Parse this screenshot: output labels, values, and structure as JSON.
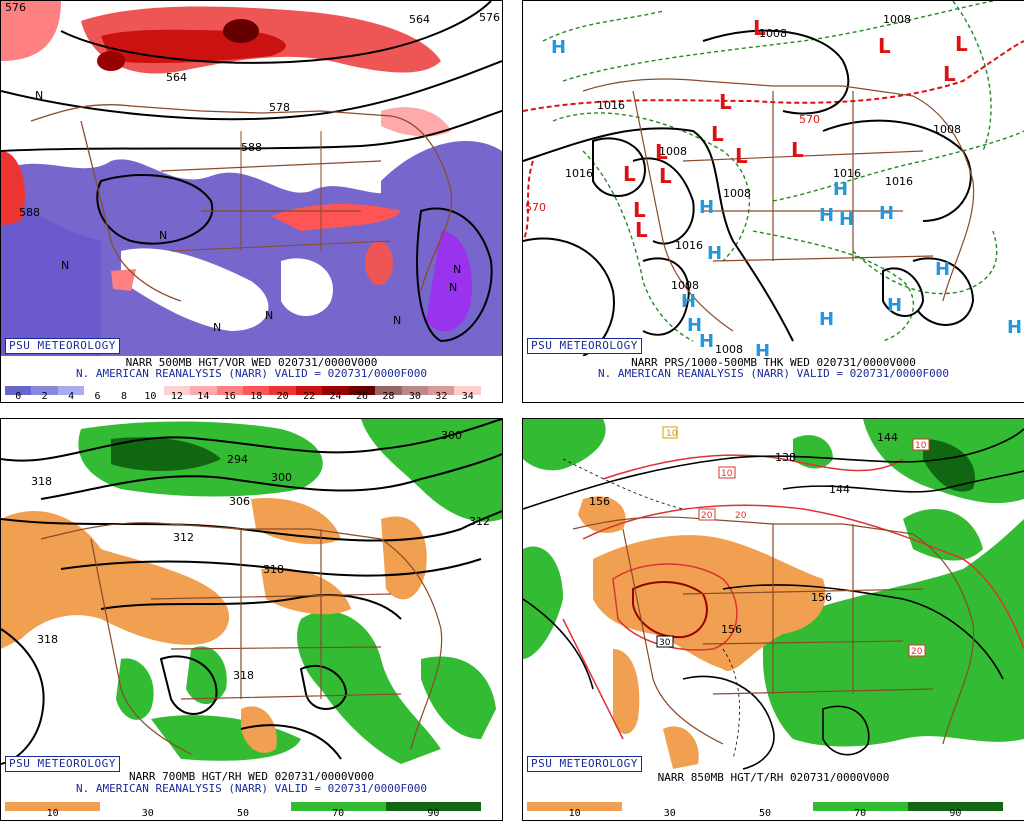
{
  "panels": [
    {
      "logo": "PSU METEOROLOGY",
      "line1": "NARR 500MB HGT/VOR WED 020731/0000V000",
      "line2": "N. AMERICAN REANALYSIS (NARR) VALID = 020731/0000F000",
      "colorbar": [
        "#6666cc",
        "#8888dd",
        "#aaaaee",
        "#ffffff",
        "#ffffff",
        "#ffffff",
        "#ffd0d0",
        "#ffaaaa",
        "#ff8080",
        "#ff5555",
        "#ee3333",
        "#cc1111",
        "#990000",
        "#660000",
        "#996666",
        "#bb8888",
        "#dd9999",
        "#ffcccc"
      ],
      "ticks": [
        "0",
        "2",
        "4",
        "6",
        "8",
        "10",
        "12",
        "14",
        "16",
        "18",
        "20",
        "22",
        "24",
        "26",
        "28",
        "30",
        "32",
        "34"
      ],
      "labels": [
        "576",
        "564",
        "564",
        "578",
        "588",
        "588",
        "576",
        "N",
        "N",
        "N",
        "N",
        "N",
        "N",
        "N",
        "N"
      ]
    },
    {
      "logo": "PSU METEOROLOGY",
      "line1": "NARR PRS/1000-500MB THK WED 020731/0000V000",
      "line2": "N. AMERICAN REANALYSIS (NARR) VALID = 020731/0000F000",
      "lows": [
        "L",
        "L",
        "L",
        "L",
        "L",
        "L",
        "L",
        "L",
        "L",
        "L",
        "L",
        "L",
        "L"
      ],
      "highs": [
        "H",
        "H",
        "H",
        "H",
        "H",
        "H",
        "H",
        "H",
        "H",
        "H",
        "H",
        "H",
        "H",
        "H",
        "H"
      ],
      "labels": [
        "1008",
        "1008",
        "1016",
        "570",
        "1008",
        "1008",
        "1016",
        "1016",
        "1016",
        "1008",
        "1016",
        "1008",
        "570",
        "1008"
      ]
    },
    {
      "logo": "PSU METEOROLOGY",
      "line1": "NARR 700MB HGT/RH WED 020731/0000V000",
      "line2": "N. AMERICAN REANALYSIS (NARR) VALID = 020731/0000F000",
      "colorbar": [
        "#f0a050",
        "#ffffff",
        "#ffffff",
        "#33bb33",
        "#116611"
      ],
      "ticks": [
        "10",
        "30",
        "50",
        "70",
        "90"
      ],
      "labels": [
        "318",
        "294",
        "300",
        "306",
        "312",
        "318",
        "318",
        "318",
        "312",
        "300"
      ]
    },
    {
      "logo": "PSU METEOROLOGY",
      "line1": "NARR 850MB HGT/T/RH 020731/0000V000",
      "colorbar": [
        "#f0a050",
        "#ffffff",
        "#ffffff",
        "#33bb33",
        "#116611"
      ],
      "ticks": [
        "10",
        "30",
        "50",
        "70",
        "90"
      ],
      "labels": [
        "156",
        "138",
        "144",
        "144",
        "156",
        "156",
        "20",
        "20",
        "10",
        "10",
        "30",
        "20",
        "10"
      ]
    }
  ],
  "colors": {
    "land_border": "#8b4a2a",
    "low": "#dd1111",
    "high": "#2299dd",
    "green": "#33bb33",
    "orange": "#f0a050",
    "purple": "#7766cc"
  }
}
